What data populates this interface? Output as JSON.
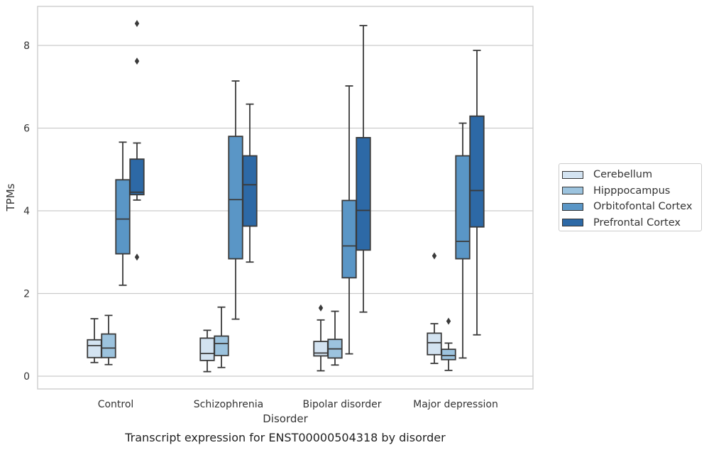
{
  "chart_data": {
    "type": "box",
    "title": "Transcript expression for ENST00000504318 by disorder",
    "xlabel": "Disorder",
    "ylabel": "TPMs",
    "ylim": [
      -0.3,
      8.95
    ],
    "yticks": [
      0,
      2,
      4,
      6,
      8
    ],
    "grid": "horizontal",
    "legend_position": "right",
    "categories": [
      "Control",
      "Schizophrenia",
      "Bipolar disorder",
      "Major depression"
    ],
    "series": [
      {
        "name": "Cerebellum",
        "color": "#d3e3f1",
        "boxes": [
          {
            "whisker_low": 0.33,
            "q1": 0.45,
            "median": 0.74,
            "q3": 0.88,
            "whisker_high": 1.39,
            "outliers": []
          },
          {
            "whisker_low": 0.11,
            "q1": 0.38,
            "median": 0.55,
            "q3": 0.92,
            "whisker_high": 1.11,
            "outliers": []
          },
          {
            "whisker_low": 0.13,
            "q1": 0.49,
            "median": 0.56,
            "q3": 0.84,
            "whisker_high": 1.36,
            "outliers": [
              1.65
            ]
          },
          {
            "whisker_low": 0.31,
            "q1": 0.52,
            "median": 0.81,
            "q3": 1.04,
            "whisker_high": 1.27,
            "outliers": [
              2.91
            ]
          }
        ]
      },
      {
        "name": "Hipppocampus",
        "color": "#9cc3de",
        "boxes": [
          {
            "whisker_low": 0.28,
            "q1": 0.45,
            "median": 0.68,
            "q3": 1.02,
            "whisker_high": 1.47,
            "outliers": []
          },
          {
            "whisker_low": 0.21,
            "q1": 0.5,
            "median": 0.79,
            "q3": 0.97,
            "whisker_high": 1.67,
            "outliers": []
          },
          {
            "whisker_low": 0.27,
            "q1": 0.44,
            "median": 0.66,
            "q3": 0.89,
            "whisker_high": 1.57,
            "outliers": []
          },
          {
            "whisker_low": 0.14,
            "q1": 0.4,
            "median": 0.5,
            "q3": 0.65,
            "whisker_high": 0.8,
            "outliers": [
              1.33
            ]
          }
        ]
      },
      {
        "name": "Orbitofontal Cortex",
        "color": "#5a96c6",
        "boxes": [
          {
            "whisker_low": 2.2,
            "q1": 2.96,
            "median": 3.8,
            "q3": 4.75,
            "whisker_high": 5.66,
            "outliers": []
          },
          {
            "whisker_low": 1.38,
            "q1": 2.84,
            "median": 4.27,
            "q3": 5.8,
            "whisker_high": 7.14,
            "outliers": []
          },
          {
            "whisker_low": 0.54,
            "q1": 2.38,
            "median": 3.15,
            "q3": 4.25,
            "whisker_high": 7.02,
            "outliers": []
          },
          {
            "whisker_low": 0.44,
            "q1": 2.84,
            "median": 3.26,
            "q3": 5.33,
            "whisker_high": 6.12,
            "outliers": []
          }
        ]
      },
      {
        "name": "Prefrontal Cortex",
        "color": "#2d69a6",
        "boxes": [
          {
            "whisker_low": 4.26,
            "q1": 4.39,
            "median": 4.45,
            "q3": 5.25,
            "whisker_high": 5.64,
            "outliers": [
              2.88,
              7.62,
              8.53
            ]
          },
          {
            "whisker_low": 2.76,
            "q1": 3.63,
            "median": 4.63,
            "q3": 5.33,
            "whisker_high": 6.58,
            "outliers": []
          },
          {
            "whisker_low": 1.55,
            "q1": 3.05,
            "median": 4.01,
            "q3": 5.77,
            "whisker_high": 8.48,
            "outliers": []
          },
          {
            "whisker_low": 1.0,
            "q1": 3.61,
            "median": 4.49,
            "q3": 6.29,
            "whisker_high": 7.88,
            "outliers": []
          }
        ]
      }
    ]
  }
}
